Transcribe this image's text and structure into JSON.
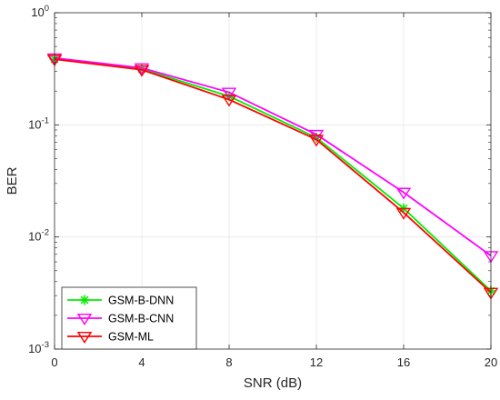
{
  "chart_data": {
    "type": "line",
    "title": "",
    "xlabel": "SNR (dB)",
    "ylabel": "BER",
    "x": [
      0,
      4,
      8,
      12,
      16,
      20
    ],
    "xlim": [
      0,
      20
    ],
    "xticks": [
      "0",
      "4",
      "8",
      "12",
      "16",
      "20"
    ],
    "ylim": [
      0.001,
      1
    ],
    "yscale": "log",
    "yticks": [
      {
        "base": "10",
        "exp": "-3"
      },
      {
        "base": "10",
        "exp": "-2"
      },
      {
        "base": "10",
        "exp": "-1"
      },
      {
        "base": "10",
        "exp": "0"
      }
    ],
    "grid": true,
    "legend_position": "bottom-left",
    "series": [
      {
        "name": "GSM-B-DNN",
        "color": "#00ee00",
        "marker": "asterisk",
        "values": [
          0.385,
          0.315,
          0.18,
          0.077,
          0.018,
          0.0033
        ]
      },
      {
        "name": "GSM-B-CNN",
        "color": "#ff00ff",
        "marker": "triangle-down",
        "values": [
          0.395,
          0.322,
          0.195,
          0.082,
          0.025,
          0.0068
        ]
      },
      {
        "name": "GSM-ML",
        "color": "#ff0000",
        "marker": "triangle-down",
        "values": [
          0.385,
          0.31,
          0.168,
          0.074,
          0.0165,
          0.0032
        ]
      }
    ]
  }
}
